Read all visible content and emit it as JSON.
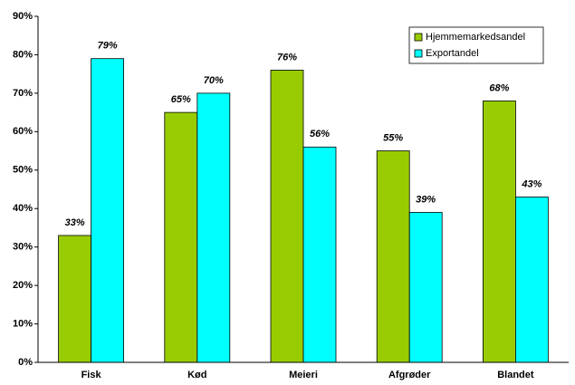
{
  "chart_data": {
    "type": "bar",
    "categories": [
      "Fisk",
      "Kød",
      "Meieri",
      "Afgrøder",
      "Blandet"
    ],
    "series": [
      {
        "name": "Hjemmemarkedsandel",
        "color": "#99cc00",
        "values": [
          33,
          65,
          76,
          55,
          68
        ],
        "value_labels": [
          "33%",
          "65%",
          "76%",
          "55%",
          "68%"
        ]
      },
      {
        "name": "Exportandel",
        "color": "#00ffff",
        "values": [
          79,
          70,
          56,
          39,
          43
        ],
        "value_labels": [
          "79%",
          "70%",
          "56%",
          "39%",
          "43%"
        ]
      }
    ],
    "ylim": [
      0,
      90
    ],
    "yticks": [
      {
        "value": 0,
        "label": "0%"
      },
      {
        "value": 10,
        "label": "10%"
      },
      {
        "value": 20,
        "label": "20%"
      },
      {
        "value": 30,
        "label": "30%"
      },
      {
        "value": 40,
        "label": "40%"
      },
      {
        "value": 50,
        "label": "50%"
      },
      {
        "value": 60,
        "label": "60%"
      },
      {
        "value": 70,
        "label": "70%"
      },
      {
        "value": 80,
        "label": "80%"
      },
      {
        "value": 90,
        "label": "90%"
      }
    ],
    "legend": "upper right",
    "grid": false
  }
}
